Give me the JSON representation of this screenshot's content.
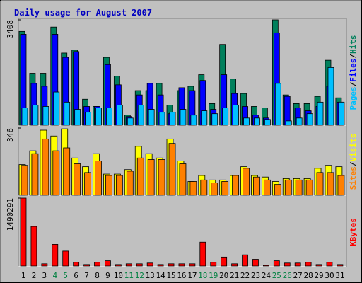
{
  "chart_data": [
    {
      "type": "bar",
      "title": "Daily usage for August 2007",
      "legend_separator": "/",
      "ylim": [
        0,
        3408
      ],
      "yticks": [
        3408
      ],
      "series": [
        {
          "name": "Hits",
          "color": "#00805c",
          "values": [
            3034,
            1681,
            1681,
            3175,
            2334,
            2428,
            840,
            607,
            2194,
            1587,
            327,
            1120,
            1120,
            1354,
            654,
            1120,
            1260,
            1634,
            700,
            2614,
            1494,
            1027,
            607,
            560,
            3408,
            980,
            700,
            700,
            934,
            2101,
            887
          ]
        },
        {
          "name": "Files",
          "color": "#0000ff",
          "values": [
            2941,
            1354,
            1260,
            2941,
            2194,
            2381,
            607,
            607,
            1961,
            1307,
            280,
            980,
            1354,
            980,
            373,
            1214,
            1120,
            1447,
            514,
            1634,
            1027,
            607,
            327,
            233,
            2988,
            934,
            560,
            467,
            607,
            1260,
            747
          ]
        },
        {
          "name": "Pages",
          "color": "#00c0ff",
          "values": [
            560,
            654,
            607,
            1074,
            747,
            514,
            420,
            560,
            560,
            654,
            233,
            654,
            514,
            420,
            420,
            514,
            327,
            467,
            373,
            560,
            654,
            233,
            233,
            187,
            1354,
            140,
            233,
            373,
            747,
            1867,
            747
          ]
        }
      ]
    },
    {
      "type": "bar",
      "legend_separator": "/",
      "ylim": [
        0,
        346
      ],
      "yticks": [
        346
      ],
      "series": [
        {
          "name": "Visits",
          "color": "#ffff00",
          "values": [
            158,
            229,
            335,
            305,
            342,
            192,
            147,
            214,
            109,
            109,
            132,
            252,
            214,
            192,
            290,
            177,
            71,
            102,
            79,
            79,
            102,
            147,
            102,
            94,
            71,
            86,
            86,
            86,
            139,
            154,
            147
          ]
        },
        {
          "name": "Sites",
          "color": "#ff8000",
          "values": [
            154,
            214,
            290,
            229,
            244,
            162,
            117,
            177,
            102,
            102,
            124,
            192,
            184,
            184,
            267,
            162,
            71,
            79,
            64,
            71,
            102,
            139,
            94,
            79,
            56,
            79,
            79,
            79,
            117,
            117,
            102
          ]
        }
      ]
    },
    {
      "type": "bar",
      "categories": [
        1,
        2,
        3,
        4,
        5,
        6,
        7,
        8,
        9,
        10,
        11,
        12,
        13,
        14,
        15,
        16,
        17,
        18,
        19,
        20,
        21,
        22,
        23,
        24,
        25,
        26,
        27,
        28,
        29,
        30,
        31
      ],
      "weekends": [
        4,
        5,
        11,
        12,
        18,
        19,
        25,
        26
      ],
      "weekend_color": "#008040",
      "ylim": [
        0,
        1490291
      ],
      "yticks": [
        1490291
      ],
      "series": [
        {
          "name": "KBytes",
          "color": "#ff0000",
          "values": [
            1490291,
            868000,
            49000,
            475000,
            327500,
            82000,
            33000,
            82000,
            115000,
            33000,
            49000,
            49000,
            65500,
            33000,
            49000,
            49000,
            49000,
            524000,
            82000,
            196500,
            49000,
            245600,
            147400,
            16400,
            115000,
            65500,
            65500,
            82000,
            33000,
            82000,
            33000
          ]
        }
      ]
    }
  ]
}
